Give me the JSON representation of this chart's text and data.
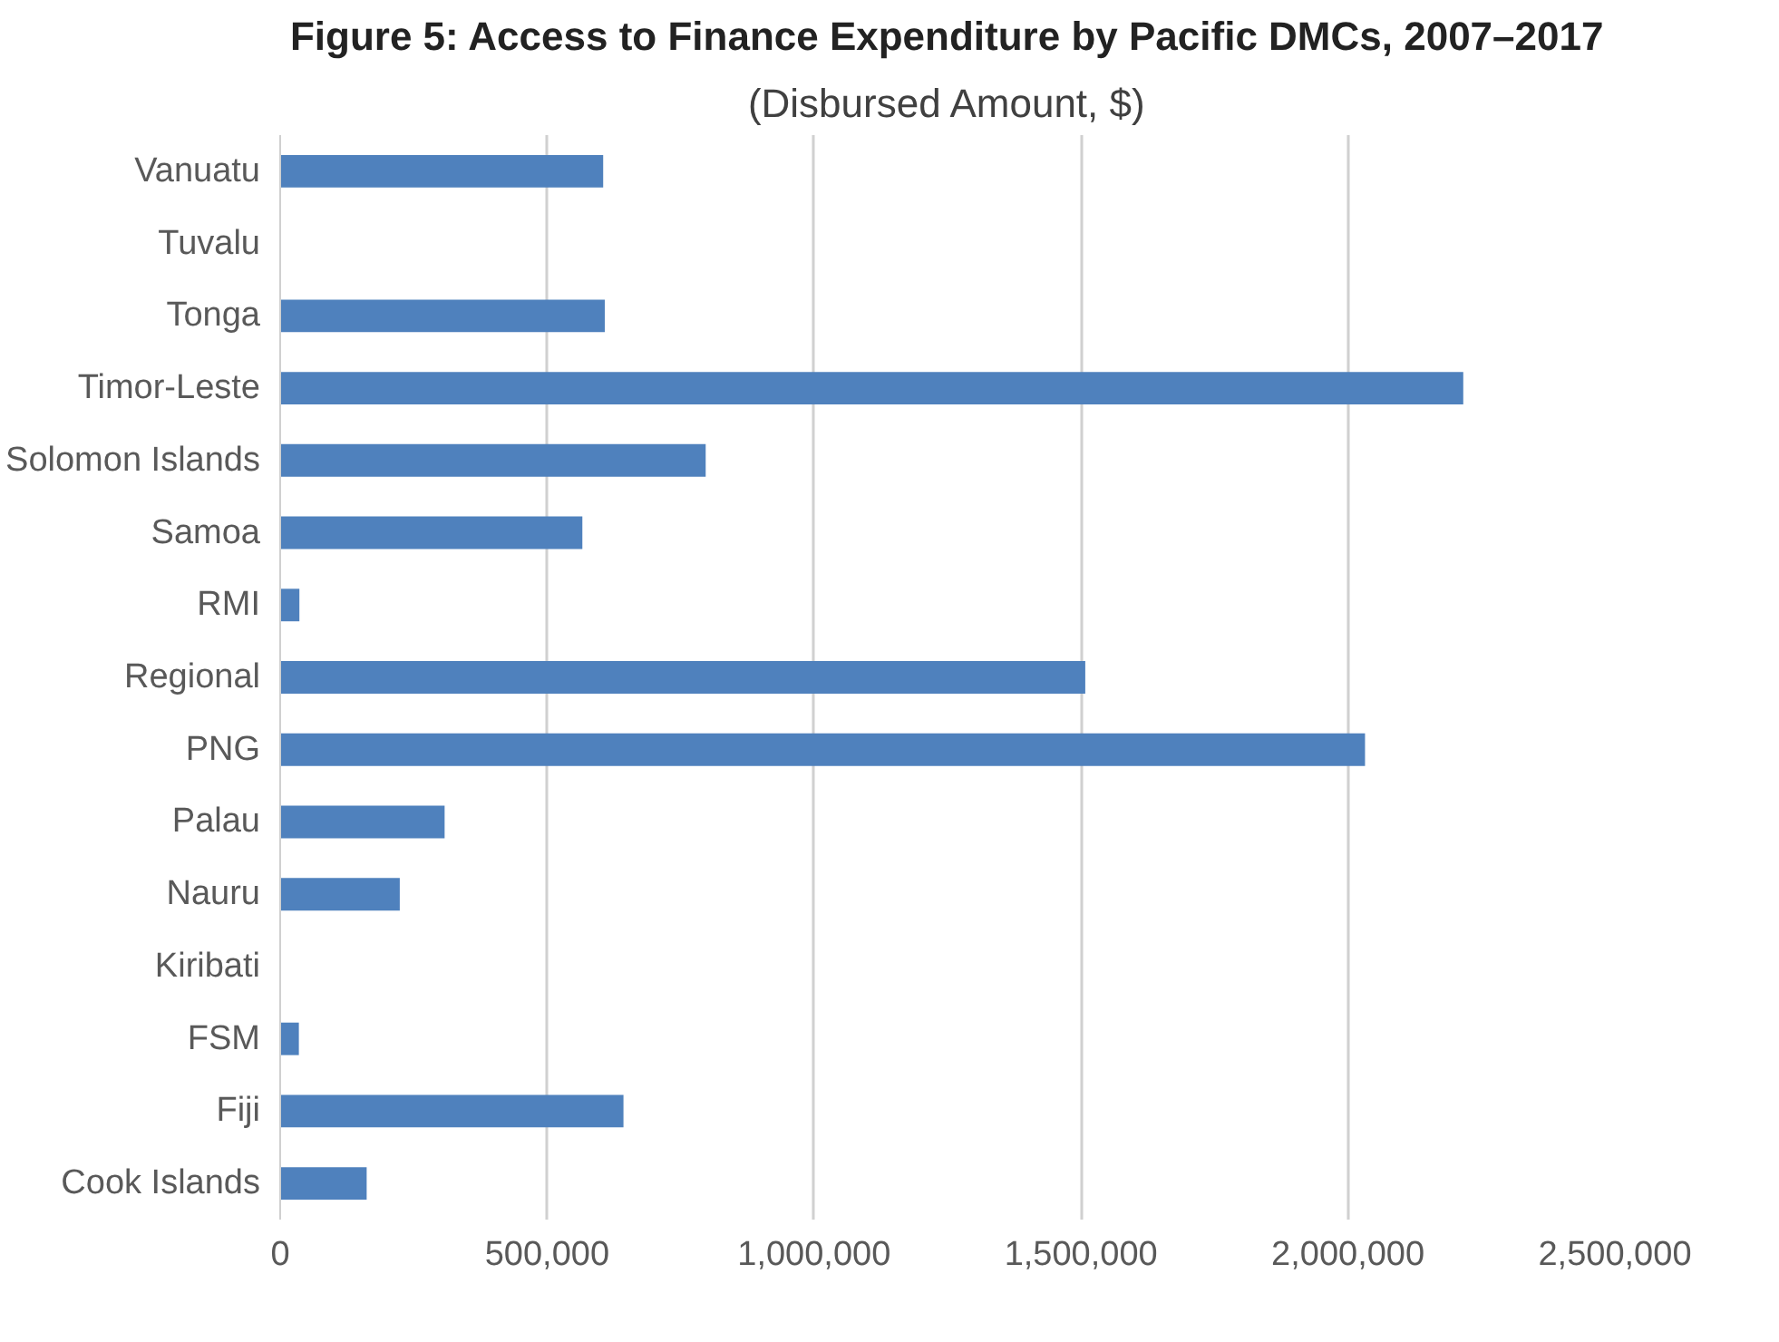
{
  "chart_data": {
    "type": "bar",
    "orientation": "horizontal",
    "title": "Figure 5: Access to Finance Expenditure by Pacific DMCs, 2007–2017",
    "subtitle": "(Disbursed Amount, $)",
    "categories": [
      "Vanuatu",
      "Tuvalu",
      "Tonga",
      "Timor-Leste",
      "Solomon Islands",
      "Samoa",
      "RMI",
      "Regional",
      "PNG",
      "Palau",
      "Nauru",
      "Kiribati",
      "FSM",
      "Fiji",
      "Cook Islands"
    ],
    "values": [
      605000,
      null,
      608000,
      2216000,
      797000,
      566000,
      36000,
      1508000,
      2032000,
      308000,
      224000,
      null,
      35000,
      643000,
      162000
    ],
    "color": "#4f81bd",
    "xlim": [
      0,
      2500000
    ],
    "xticks": [
      {
        "value": 0,
        "label": "0"
      },
      {
        "value": 500000,
        "label": "500,000"
      },
      {
        "value": 1000000,
        "label": "1,000,000"
      },
      {
        "value": 1500000,
        "label": "1,500,000"
      },
      {
        "value": 2000000,
        "label": "2,000,000"
      },
      {
        "value": 2500000,
        "label": "2,500,000"
      }
    ],
    "grid": "x"
  }
}
